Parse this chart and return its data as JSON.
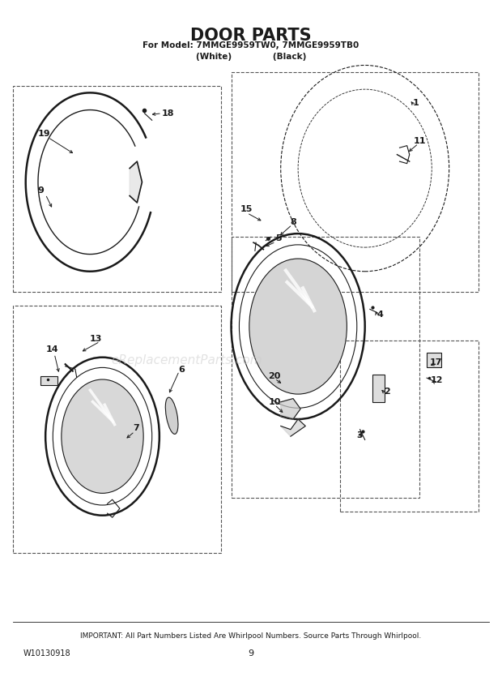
{
  "title": "DOOR PARTS",
  "subtitle_line1": "For Model: 7MMGE9959TW0, 7MMGE9959TB0",
  "subtitle_line2": "(White)              (Black)",
  "footer_line1": "IMPORTANT: All Part Numbers Listed Are Whirlpool Numbers. Source Parts Through Whirlpool.",
  "footer_line2": "W10130918",
  "footer_page": "9",
  "bg_color": "#ffffff",
  "line_color": "#1a1a1a",
  "dashed_color": "#555555",
  "watermark_color": "#cccccc",
  "watermark_text": "eReplacementParts.com"
}
